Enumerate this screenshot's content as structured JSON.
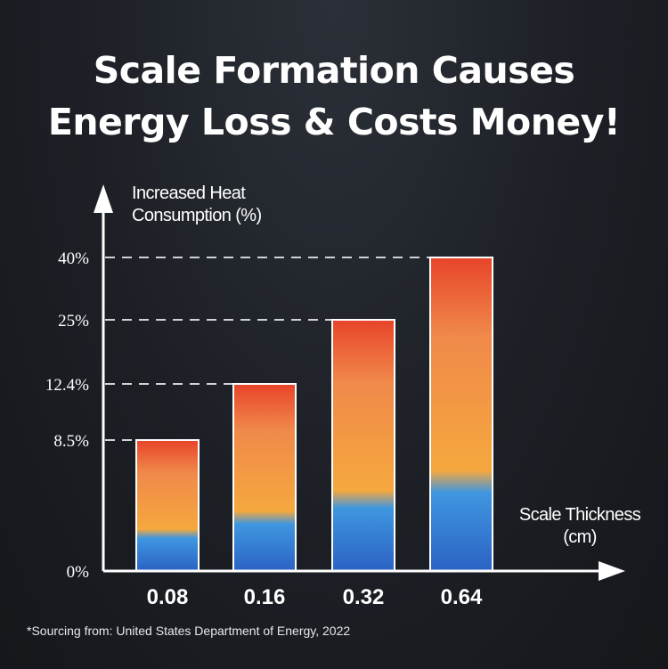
{
  "title": {
    "line1": "Scale Formation Causes",
    "line2": "Energy Loss & Costs Money!"
  },
  "footnote": "*Sourcing from: United States Department of Energy, 2022",
  "chart_data": {
    "type": "bar",
    "title": "Scale Formation Causes Energy Loss & Costs Money!",
    "ylabel_line1": "Increased Heat",
    "ylabel_line2": "Consumption (%)",
    "xlabel_line1": "Scale Thickness",
    "xlabel_line2": "(cm)",
    "categories": [
      "0.08",
      "0.16",
      "0.32",
      "0.64"
    ],
    "values": [
      8.5,
      12.4,
      25,
      40
    ],
    "yticks": [
      {
        "value": 0,
        "label": "0%"
      },
      {
        "value": 8.5,
        "label": "8.5%"
      },
      {
        "value": 12.4,
        "label": "12.4%"
      },
      {
        "value": 25,
        "label": "25%"
      },
      {
        "value": 40,
        "label": "40%"
      }
    ],
    "colors": {
      "axis": "#ffffff",
      "guide": "#cfd3d8",
      "bar_top": "#e8442a",
      "bar_mid_orange": "#f0894a",
      "bar_orange": "#f5a83e",
      "bar_blue": "#3f96e0",
      "bar_bottom": "#2b62c4"
    }
  }
}
